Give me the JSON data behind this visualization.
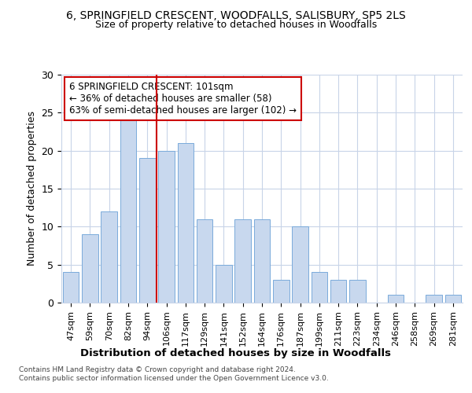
{
  "title1": "6, SPRINGFIELD CRESCENT, WOODFALLS, SALISBURY, SP5 2LS",
  "title2": "Size of property relative to detached houses in Woodfalls",
  "xlabel": "Distribution of detached houses by size in Woodfalls",
  "ylabel": "Number of detached properties",
  "categories": [
    "47sqm",
    "59sqm",
    "70sqm",
    "82sqm",
    "94sqm",
    "106sqm",
    "117sqm",
    "129sqm",
    "141sqm",
    "152sqm",
    "164sqm",
    "176sqm",
    "187sqm",
    "199sqm",
    "211sqm",
    "223sqm",
    "234sqm",
    "246sqm",
    "258sqm",
    "269sqm",
    "281sqm"
  ],
  "values": [
    4,
    9,
    12,
    24,
    19,
    20,
    21,
    11,
    5,
    11,
    11,
    3,
    10,
    4,
    3,
    3,
    0,
    1,
    0,
    1,
    1
  ],
  "bar_color": "#c8d8ee",
  "bar_edge_color": "#7aabdb",
  "vline_x": 4.5,
  "annotation_text": "6 SPRINGFIELD CRESCENT: 101sqm\n← 36% of detached houses are smaller (58)\n63% of semi-detached houses are larger (102) →",
  "vline_color": "#cc0000",
  "annotation_box_edge": "#cc0000",
  "ylim": [
    0,
    30
  ],
  "yticks": [
    0,
    5,
    10,
    15,
    20,
    25,
    30
  ],
  "footer1": "Contains HM Land Registry data © Crown copyright and database right 2024.",
  "footer2": "Contains public sector information licensed under the Open Government Licence v3.0.",
  "bg_color": "#ffffff",
  "grid_color": "#c8d4e8"
}
